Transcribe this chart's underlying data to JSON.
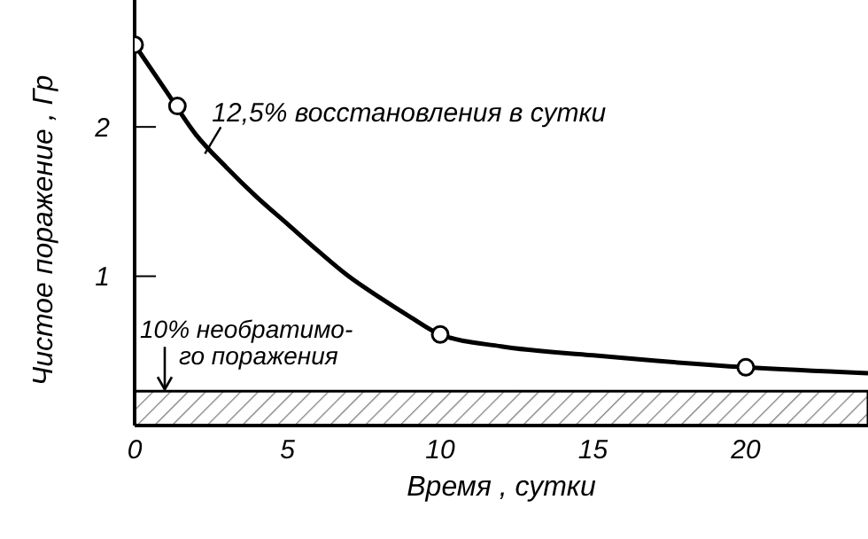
{
  "chart_data": {
    "type": "line",
    "xlabel": "Время , сутки",
    "ylabel": "Чистое поражение , Гр",
    "xlim": [
      0,
      24
    ],
    "ylim": [
      0,
      2.85
    ],
    "xticks": [
      0,
      5,
      10,
      15,
      20
    ],
    "yticks": [
      1,
      2
    ],
    "series": [
      {
        "color": "#000000",
        "marker": "none",
        "line_style": "solid",
        "x": [
          0,
          1,
          2,
          3,
          4,
          5,
          6,
          7,
          8,
          9,
          10,
          12,
          15,
          20,
          24
        ],
        "values": [
          2.55,
          2.25,
          1.95,
          1.73,
          1.53,
          1.35,
          1.17,
          1.0,
          0.86,
          0.73,
          0.61,
          0.53,
          0.47,
          0.39,
          0.35
        ]
      },
      {
        "type": "scatter",
        "color": "#000000",
        "marker": "circle",
        "x": [
          0,
          1.4,
          10,
          20
        ],
        "values": [
          2.55,
          2.14,
          0.61,
          0.39
        ]
      }
    ],
    "bands": [
      {
        "axis": "y",
        "from": 0,
        "to": 0.23,
        "label": "10% необратимо-\nго поражения",
        "color": "#000000"
      }
    ],
    "annotations": [
      {
        "text": "12,5% восстановления в сутки",
        "x": 2.3,
        "y": 1.82
      }
    ],
    "grid": false
  }
}
